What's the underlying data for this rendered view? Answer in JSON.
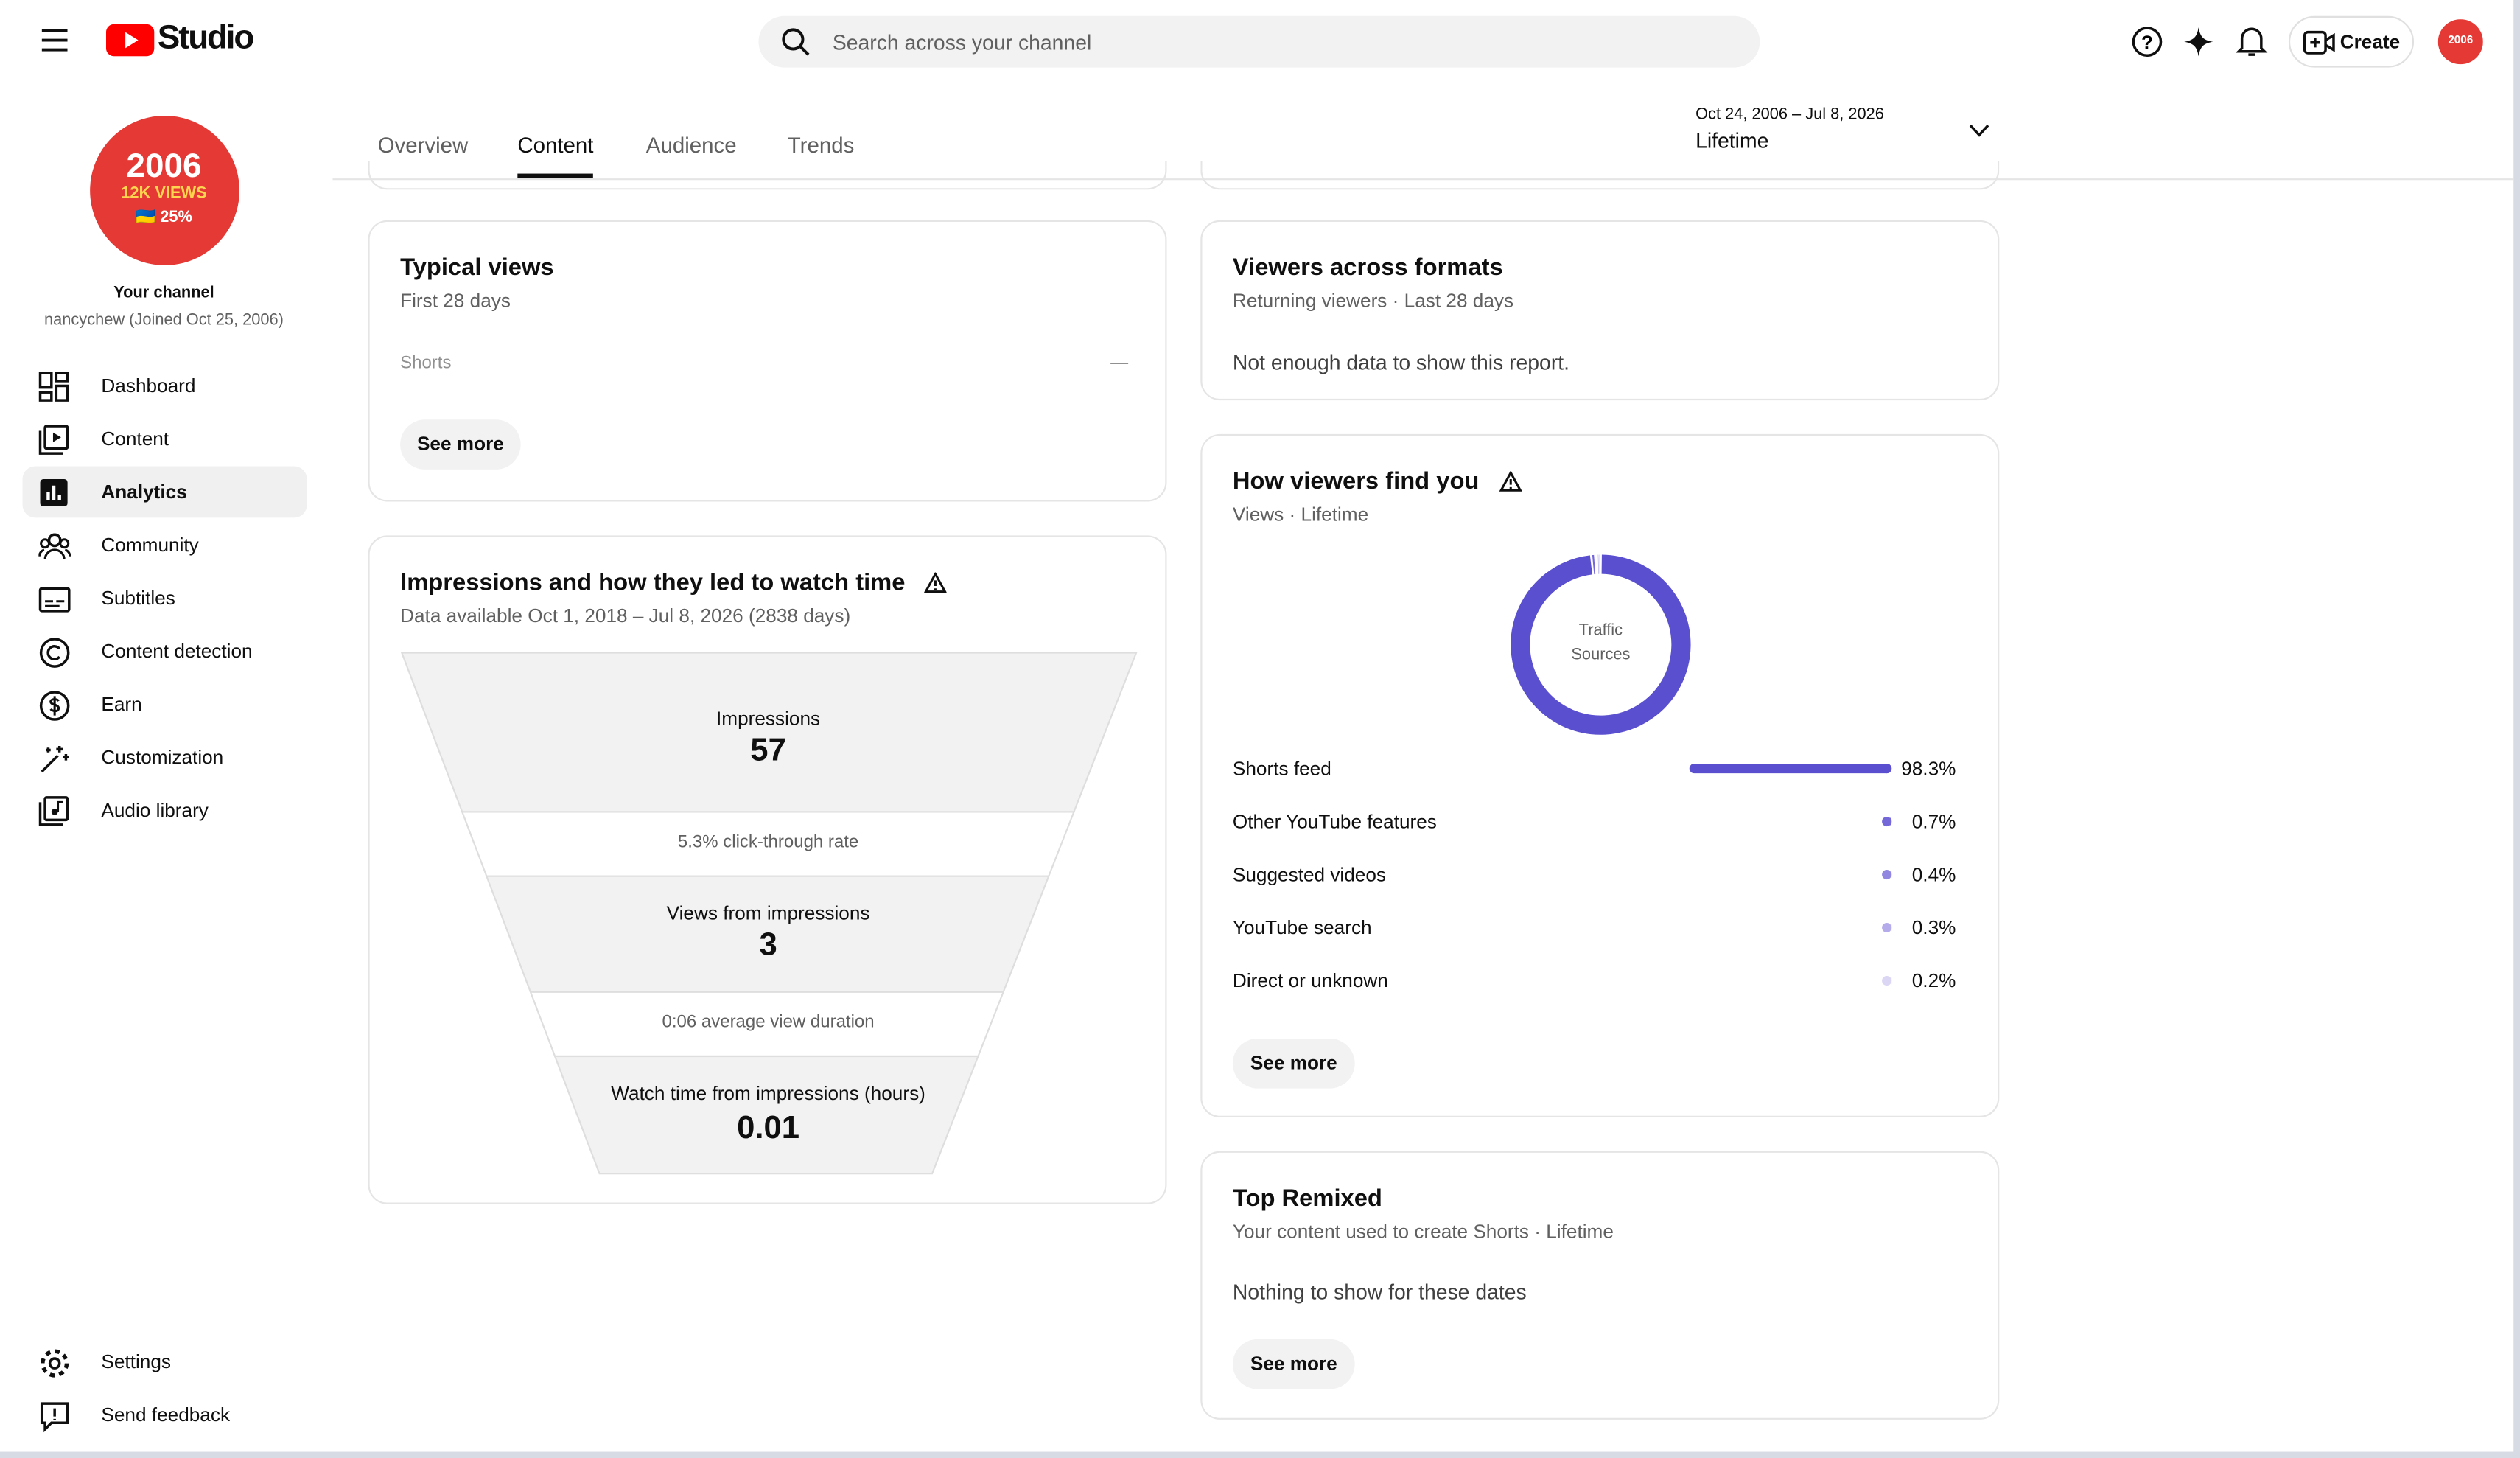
{
  "header": {
    "logo": "Studio",
    "search_placeholder": "Search across your channel",
    "create": "Create"
  },
  "sidebar": {
    "avatar_lines": [
      "2006",
      "12K VIEWS",
      "🇺🇦 25%"
    ],
    "channel_label": "Your channel",
    "channel_handle": "nancychew (Joined Oct 25, 2006)",
    "nav": [
      "Dashboard",
      "Content",
      "Analytics",
      "Community",
      "Subtitles",
      "Content detection",
      "Earn",
      "Customization",
      "Audio library"
    ],
    "active_nav": 2,
    "bottom_nav": [
      "Settings",
      "Send feedback"
    ]
  },
  "tabs": [
    "Overview",
    "Content",
    "Audience",
    "Trends"
  ],
  "active_tab": 1,
  "date_range": {
    "range": "Oct 24, 2006 – Jul 8, 2026",
    "label": "Lifetime"
  },
  "typical_views": {
    "title": "Typical views",
    "subtitle": "First 28 days",
    "row_label": "Shorts",
    "row_value": "—",
    "button": "See more"
  },
  "impressions": {
    "title": "Impressions and how they led to watch time",
    "subtitle": "Data available Oct 1, 2018 – Jul 8, 2026 (2838 days)",
    "stages": [
      {
        "label": "Impressions",
        "value": 57
      },
      {
        "label": "Views from impressions",
        "value": 3
      },
      {
        "label": "Watch time from impressions (hours)",
        "value": 0.01
      }
    ],
    "notes": [
      "5.3% click-through rate",
      "0:06 average view duration"
    ]
  },
  "viewers_formats": {
    "title": "Viewers across formats",
    "subtitle": "Returning viewers · Last 28 days",
    "message": "Not enough data to show this report."
  },
  "traffic": {
    "title": "How viewers find you",
    "subtitle": "Views · Lifetime",
    "center_label": "Traffic Sources",
    "button": "See more",
    "sources": [
      {
        "name": "Shorts feed",
        "value": 98.3,
        "value_label": "98.3%",
        "color": "#5a4fcf"
      },
      {
        "name": "Other YouTube features",
        "value": 0.7,
        "value_label": "0.7%",
        "color": "#7468d8"
      },
      {
        "name": "Suggested videos",
        "value": 0.4,
        "value_label": "0.4%",
        "color": "#9187e0"
      },
      {
        "name": "YouTube search",
        "value": 0.3,
        "value_label": "0.3%",
        "color": "#b4acea"
      },
      {
        "name": "Direct or unknown",
        "value": 0.2,
        "value_label": "0.2%",
        "color": "#dad6f4"
      }
    ]
  },
  "top_remixed": {
    "title": "Top Remixed",
    "subtitle": "Your content used to create Shorts · Lifetime",
    "message": "Nothing to show for these dates",
    "button": "See more"
  }
}
